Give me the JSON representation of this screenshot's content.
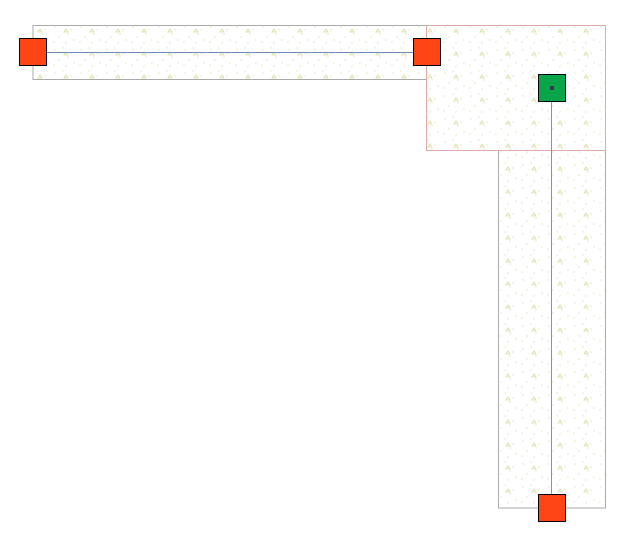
{
  "colors": {
    "background": "#ffffff",
    "slab_border": "#aaaaaa",
    "corner_border": "#e0aaaa",
    "hatch_dots": "#d6dca0",
    "hatch_dots_alt": "#c8e0b8",
    "endpoint_fill": "#ff4416",
    "node_fill": "#0aa548",
    "node_center": "#333a4a",
    "horizontal_line": "#6f8db0",
    "vertical_line": "#8a90a0",
    "outline": "#000000"
  },
  "elements": {
    "horizontal_segment": {
      "pattern": "concrete-hatch"
    },
    "corner_segment": {
      "pattern": "concrete-hatch"
    },
    "vertical_segment": {
      "pattern": "concrete-hatch"
    },
    "endpoints": [
      "endpoint-left",
      "endpoint-top-right",
      "endpoint-bottom"
    ],
    "junction_node": {
      "icon": "node-square-icon"
    }
  }
}
